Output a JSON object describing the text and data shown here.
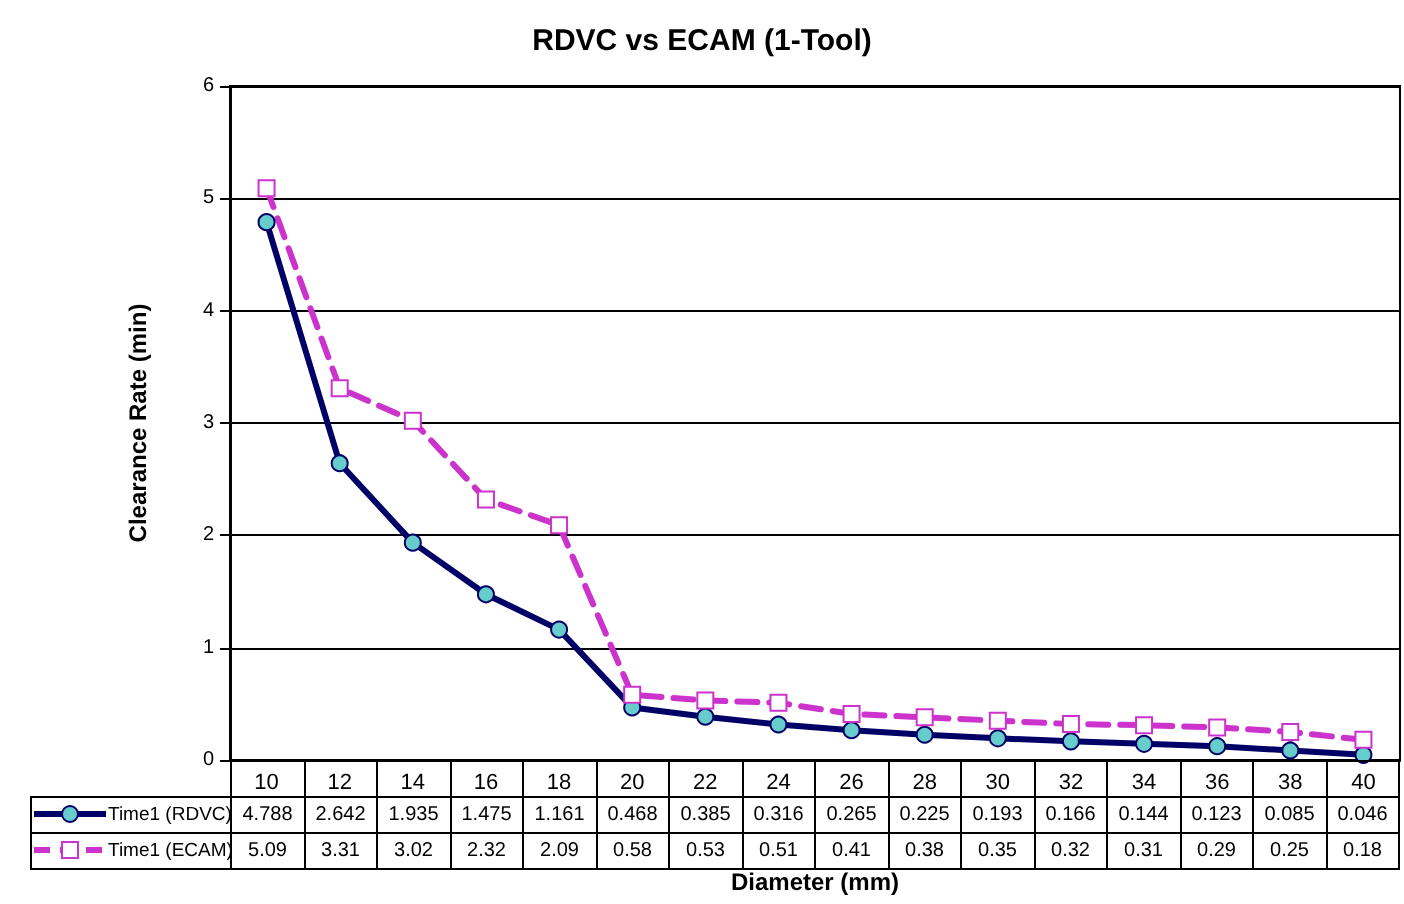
{
  "chart_data": {
    "type": "line",
    "title": "RDVC vs ECAM (1-Tool)",
    "xlabel": "Diameter (mm)",
    "ylabel": "Clearance Rate (min)",
    "categories": [
      "10",
      "12",
      "14",
      "16",
      "18",
      "20",
      "22",
      "24",
      "26",
      "28",
      "30",
      "32",
      "34",
      "36",
      "38",
      "40"
    ],
    "series": [
      {
        "name": "Time1 (RDVC)",
        "color": "#000066",
        "marker": "circle",
        "line_style": "solid",
        "values": [
          4.788,
          2.642,
          1.935,
          1.475,
          1.161,
          0.468,
          0.385,
          0.316,
          0.265,
          0.225,
          0.193,
          0.166,
          0.144,
          0.123,
          0.085,
          0.046
        ]
      },
      {
        "name": "Time1 (ECAM)",
        "color": "#cc33cc",
        "marker": "square",
        "line_style": "dashed",
        "values": [
          5.09,
          3.31,
          3.02,
          2.32,
          2.09,
          0.58,
          0.53,
          0.51,
          0.41,
          0.38,
          0.35,
          0.32,
          0.31,
          0.29,
          0.25,
          0.18
        ]
      }
    ],
    "ylim": [
      0,
      6
    ],
    "yticks": [
      0,
      1,
      2,
      3,
      4,
      5,
      6
    ],
    "grid": "y",
    "legend": "bottom",
    "data_labels": true
  }
}
